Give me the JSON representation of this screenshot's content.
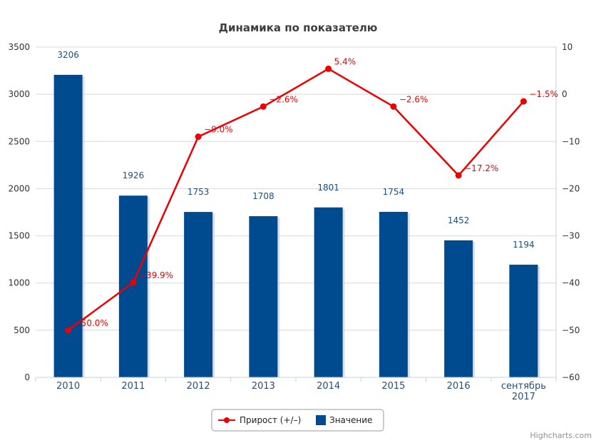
{
  "chart_data": {
    "type": "bar",
    "title": "Динамика по показателю",
    "categories": [
      "2010",
      "2011",
      "2012",
      "2013",
      "2014",
      "2015",
      "2016",
      "сентябрь 2017"
    ],
    "series": [
      {
        "name": "Значение",
        "type": "bar",
        "axis": "left",
        "color": "#004a8f",
        "values": [
          3206,
          1926,
          1753,
          1708,
          1801,
          1754,
          1452,
          1194
        ],
        "labels": [
          "3206",
          "1926",
          "1753",
          "1708",
          "1801",
          "1754",
          "1452",
          "1194"
        ]
      },
      {
        "name": "Прирост (+/–)",
        "type": "line",
        "axis": "right",
        "color": "#ee0000",
        "values": [
          -50.0,
          -39.9,
          -9.0,
          -2.6,
          5.4,
          -2.6,
          -17.2,
          -1.5
        ],
        "labels": [
          "−50.0%",
          "−39.9%",
          "−9.0%",
          "−2.6%",
          "5.4%",
          "−2.6%",
          "−17.2%",
          "−1.5%"
        ]
      }
    ],
    "y_left": {
      "range": [
        0,
        3500
      ],
      "ticks": [
        0,
        500,
        1000,
        1500,
        2000,
        2500,
        3000,
        3500
      ]
    },
    "y_right": {
      "range": [
        -60,
        10
      ],
      "ticks": [
        "−60",
        "−50",
        "−40",
        "−30",
        "−20",
        "−10",
        "0",
        "10"
      ]
    },
    "grid": true,
    "legend": {
      "position": "bottom-center",
      "items": [
        "Прирост (+/–)",
        "Значение"
      ]
    },
    "credits": "Highcharts.com"
  }
}
